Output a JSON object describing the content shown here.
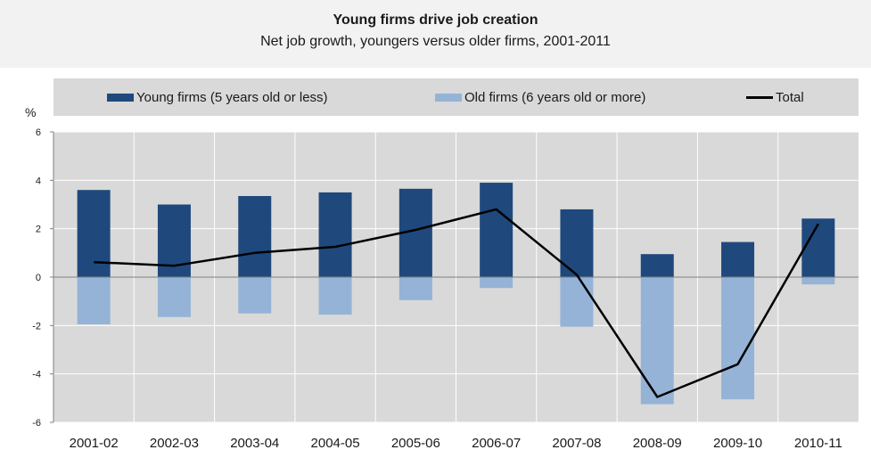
{
  "chart_data": {
    "type": "bar",
    "title": "Young firms drive job creation",
    "subtitle": "Net job growth, youngers versus older firms, 2001-2011",
    "ylabel": "%",
    "ylim": [
      -6,
      6
    ],
    "yticks": [
      6,
      4,
      2,
      0,
      -2,
      -4,
      -6
    ],
    "categories": [
      "2001-02",
      "2002-03",
      "2003-04",
      "2004-05",
      "2005-06",
      "2006-07",
      "2007-08",
      "2008-09",
      "2009-10",
      "2010-11"
    ],
    "series": [
      {
        "name": "Young firms (5 years old or less)",
        "type": "bar",
        "color": "#1f497d",
        "values": [
          3.6,
          3.0,
          3.35,
          3.5,
          3.65,
          3.9,
          2.8,
          0.95,
          1.45,
          2.42
        ]
      },
      {
        "name": "Old firms (6 years old or more)",
        "type": "bar",
        "color": "#95b3d7",
        "values": [
          -1.95,
          -1.65,
          -1.5,
          -1.55,
          -0.95,
          -0.45,
          -2.05,
          -5.25,
          -5.05,
          -0.3
        ]
      },
      {
        "name": "Total",
        "type": "line",
        "color": "#000000",
        "values": [
          0.62,
          0.47,
          1.0,
          1.25,
          1.95,
          2.8,
          0.1,
          -4.95,
          -3.6,
          2.2
        ]
      }
    ],
    "legend_position": "top",
    "grid": true
  }
}
